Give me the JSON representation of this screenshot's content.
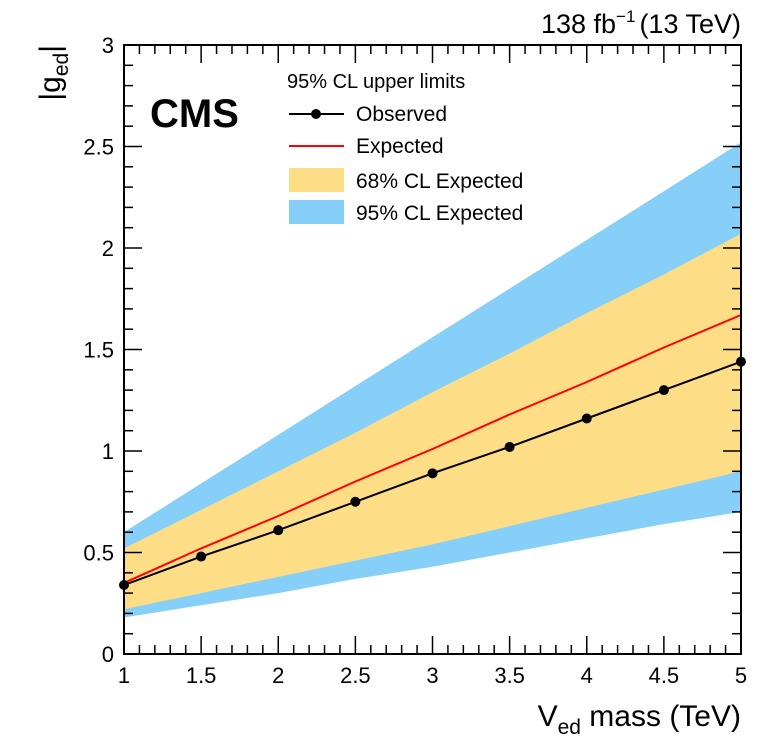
{
  "chart_data": {
    "type": "line",
    "experiment": "CMS",
    "lumi": {
      "value": "138 fb",
      "exponent": "−1",
      "energy": "(13 TeV)"
    },
    "xlabel": {
      "main": "V",
      "sub": "ed",
      "rest": " mass (TeV)"
    },
    "ylabel": {
      "pre": "|g",
      "sub": "ed",
      "post": "|"
    },
    "xlim": [
      1,
      5
    ],
    "ylim": [
      0,
      3
    ],
    "xticks": [
      "1",
      "1.5",
      "2",
      "2.5",
      "3",
      "3.5",
      "4",
      "4.5",
      "5"
    ],
    "yticks": [
      "0",
      "0.5",
      "1",
      "1.5",
      "2",
      "2.5",
      "3"
    ],
    "x": [
      1,
      1.5,
      2,
      2.5,
      3,
      3.5,
      4,
      4.5,
      5
    ],
    "observed": [
      0.34,
      0.48,
      0.61,
      0.75,
      0.89,
      1.02,
      1.16,
      1.3,
      1.44
    ],
    "expected": [
      0.35,
      0.52,
      0.68,
      0.85,
      1.01,
      1.18,
      1.34,
      1.51,
      1.67
    ],
    "band68": {
      "low": [
        0.22,
        0.3,
        0.38,
        0.46,
        0.54,
        0.63,
        0.72,
        0.81,
        0.9
      ],
      "high": [
        0.52,
        0.71,
        0.9,
        1.09,
        1.29,
        1.48,
        1.68,
        1.87,
        2.07
      ]
    },
    "band95": {
      "low": [
        0.18,
        0.24,
        0.3,
        0.37,
        0.43,
        0.5,
        0.57,
        0.64,
        0.7
      ],
      "high": [
        0.6,
        0.84,
        1.08,
        1.32,
        1.56,
        1.8,
        2.04,
        2.28,
        2.52
      ]
    },
    "legend": {
      "header": "95% CL upper limits",
      "observed": "Observed",
      "expected": "Expected",
      "band68": "68% CL Expected",
      "band95": "95% CL Expected"
    },
    "colors": {
      "observed": "#000000",
      "expected": "#ff0000",
      "band68": "#fedd87",
      "band95": "#86cff9"
    }
  }
}
